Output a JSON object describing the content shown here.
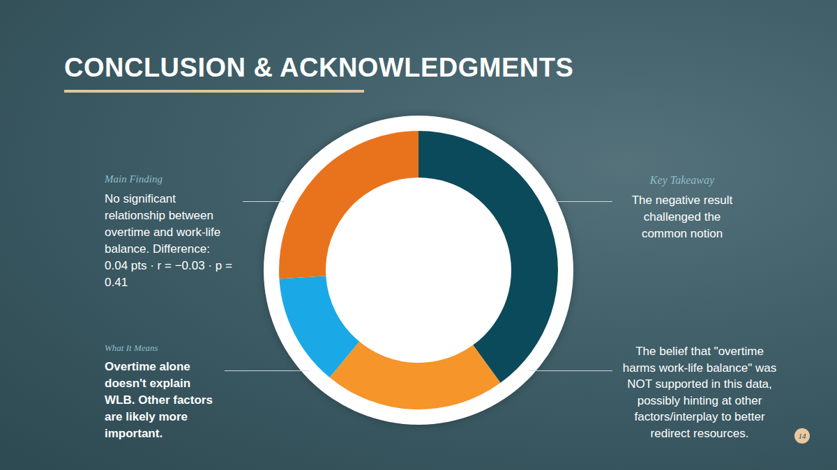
{
  "title": "CONCLUSION & ACKNOWLEDGMENTS",
  "page_number": 14,
  "chart_data": {
    "type": "donut",
    "categories": [
      null,
      null,
      null,
      null
    ],
    "values": [
      40,
      21,
      13,
      26
    ],
    "colors": [
      "#0b4a5a",
      "#f5952a",
      "#1ba8e6",
      "#e8731c"
    ],
    "data_labels": false
  },
  "panels": {
    "main_finding": {
      "label": "Main Finding",
      "text": "No significant relationship between overtime and work-life balance. Difference: 0.04 pts  · r = −0.03  · p = 0.41"
    },
    "key_takeaway": {
      "label": "Key Takeaway",
      "text": "The negative result challenged the common notion"
    },
    "what_it_means": {
      "label": "What It Means",
      "text": "Overtime alone doesn't explain WLB. Other factors are likely more important."
    },
    "note": {
      "text": "The belief that \"overtime harms work-life balance\" was NOT supported in this data, possibly hinting at other factors/interplay to better redirect resources."
    }
  }
}
